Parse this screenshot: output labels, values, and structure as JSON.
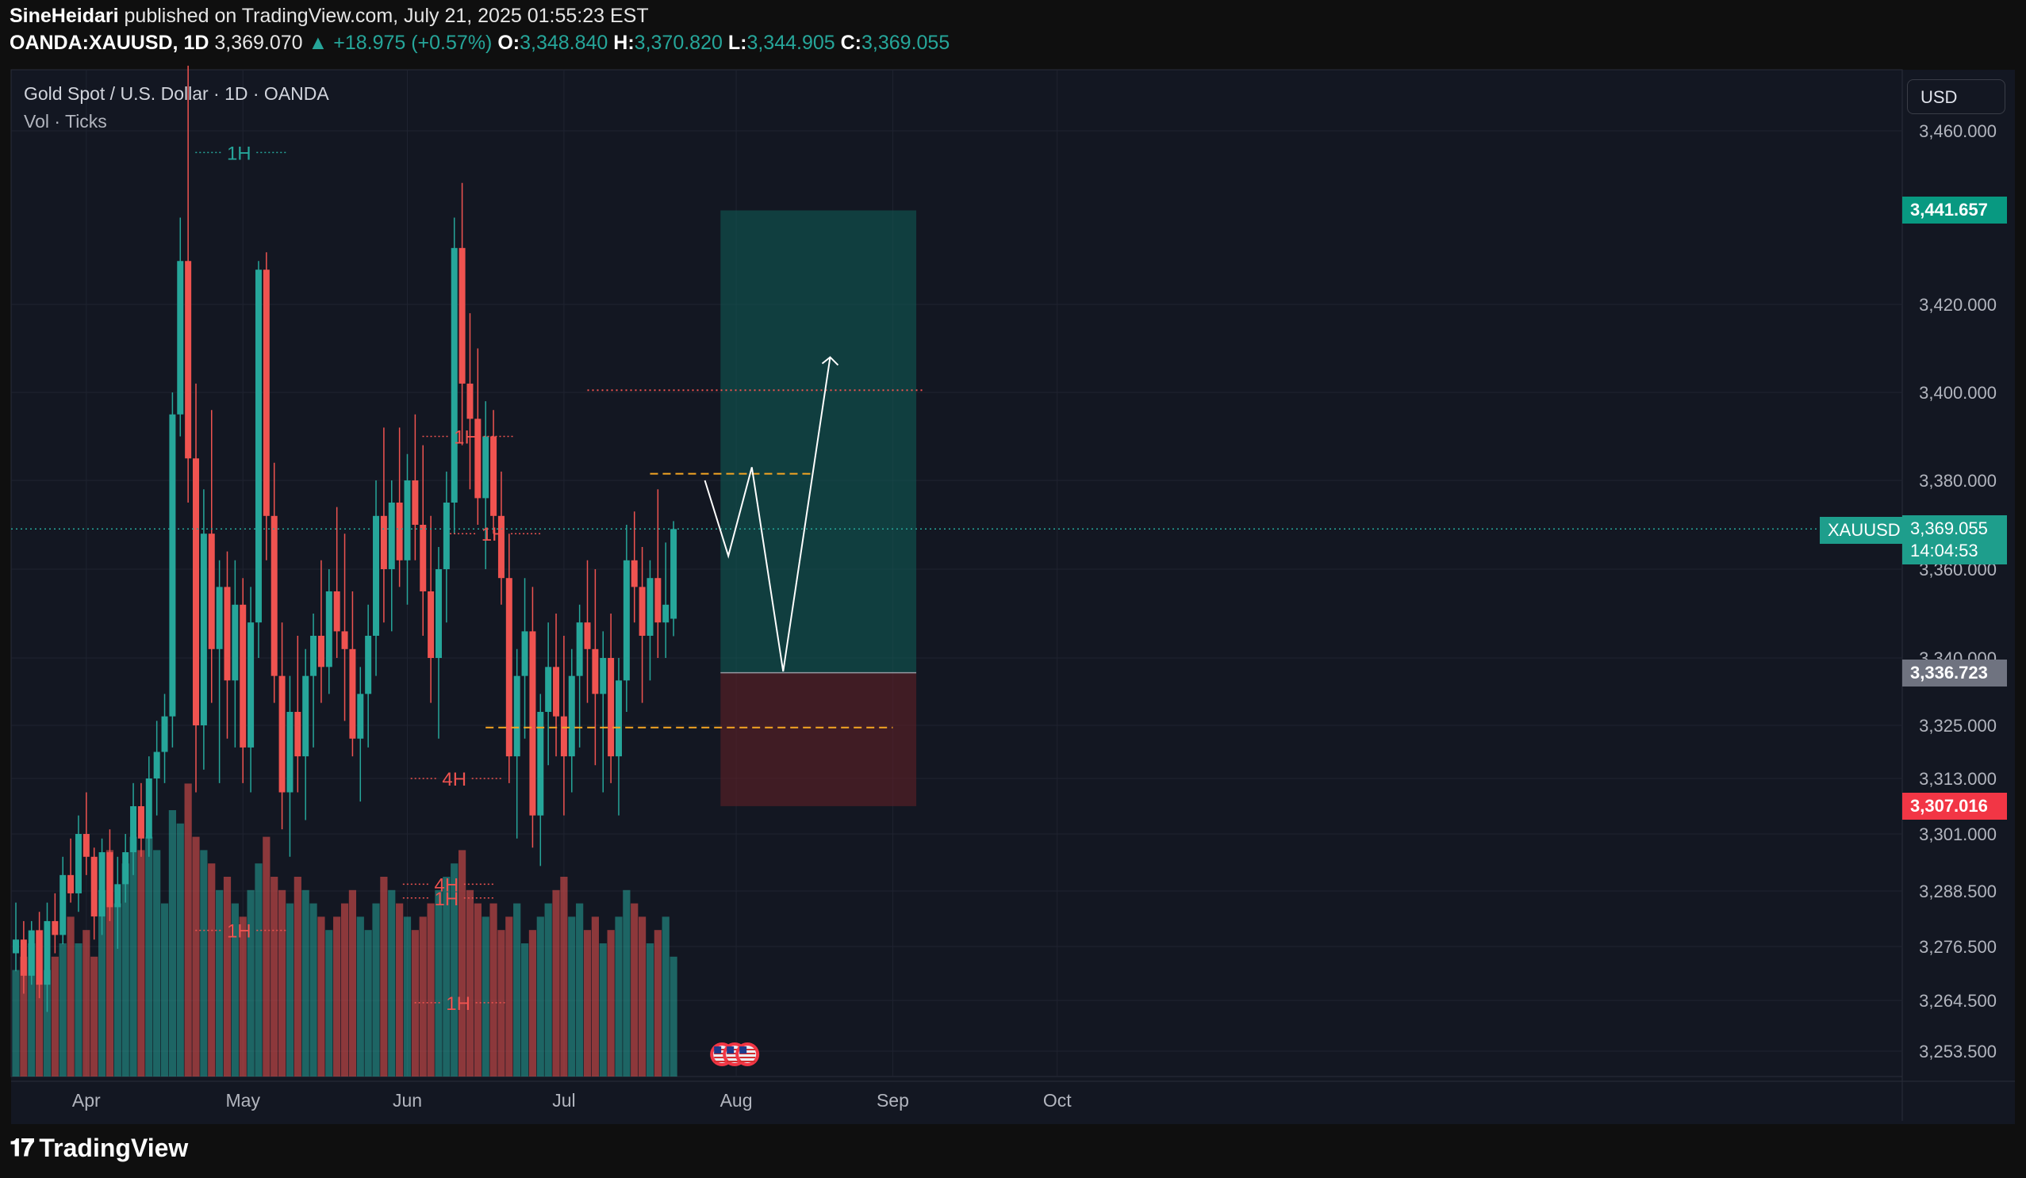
{
  "header": {
    "author": "SineHeidari",
    "published_text": "published on TradingView.com, July 21, 2025 01:55:23 EST",
    "symbol": "OANDA:XAUUSD, 1D",
    "last": "3,369.070",
    "change": "▲ +18.975 (+0.57%)",
    "o_label": "O:",
    "o_value": "3,348.840",
    "h_label": "H:",
    "h_value": "3,370.820",
    "l_label": "L:",
    "l_value": "3,344.905",
    "c_label": "C:",
    "c_value": "3,369.055"
  },
  "legend": {
    "title": "Gold Spot / U.S. Dollar · 1D · OANDA",
    "indicator": "Vol · Ticks"
  },
  "price_axis": {
    "currency_button": "USD",
    "tp_label": "3,441.657",
    "sl_label": "3,307.016",
    "entry_label": "3,336.723",
    "symbol_tag": "XAUUSD",
    "current_price": "3,369.055",
    "countdown": "14:04:53"
  },
  "footer": {
    "brand": "TradingView",
    "logo_icon": "tradingview-logo-icon"
  },
  "colors": {
    "up": "#26a69a",
    "down": "#ef5350",
    "background": "#131722",
    "target_zone": "#0f5f58",
    "stop_zone": "#5f1f27",
    "annotation": "#ef5350",
    "level": "#f5a623"
  },
  "chart_data": {
    "type": "candlestick",
    "symbol": "XAUUSD",
    "timeframe": "1D",
    "ylim": [
      3245,
      3470
    ],
    "y_ticks": [
      {
        "value": 3460,
        "label": "3,460.000"
      },
      {
        "value": 3420,
        "label": "3,420.000"
      },
      {
        "value": 3400,
        "label": "3,400.000"
      },
      {
        "value": 3380,
        "label": "3,380.000"
      },
      {
        "value": 3360,
        "label": "3,360.000"
      },
      {
        "value": 3340,
        "label": "3,340.000"
      },
      {
        "value": 3325,
        "label": "3,325.000"
      },
      {
        "value": 3313,
        "label": "3,313.000"
      },
      {
        "value": 3301,
        "label": "3,301.000"
      },
      {
        "value": 3288.5,
        "label": "3,288.500"
      },
      {
        "value": 3276.5,
        "label": "3,276.500"
      },
      {
        "value": 3264.5,
        "label": "3,264.500"
      },
      {
        "value": 3253.5,
        "label": "3,253.500"
      }
    ],
    "x_ticks": [
      {
        "index": 9,
        "label": "Apr"
      },
      {
        "index": 29,
        "label": "May"
      },
      {
        "index": 50,
        "label": "Jun"
      },
      {
        "index": 70,
        "label": "Jul"
      },
      {
        "index": 92,
        "label": "Aug"
      },
      {
        "index": 112,
        "label": "Sep"
      },
      {
        "index": 133,
        "label": "Oct"
      }
    ],
    "candles": [
      [
        3275,
        3286,
        3271,
        3278,
        8
      ],
      [
        3278,
        3282,
        3266,
        3270,
        9
      ],
      [
        3270,
        3282,
        3268,
        3280,
        10
      ],
      [
        3280,
        3284,
        3265,
        3268,
        11
      ],
      [
        3268,
        3286,
        3262,
        3282,
        8
      ],
      [
        3282,
        3288,
        3275,
        3279,
        9
      ],
      [
        3279,
        3296,
        3277,
        3292,
        10
      ],
      [
        3292,
        3300,
        3286,
        3288,
        12
      ],
      [
        3288,
        3305,
        3284,
        3301,
        10
      ],
      [
        3301,
        3310,
        3292,
        3296,
        11
      ],
      [
        3296,
        3298,
        3278,
        3283,
        9
      ],
      [
        3283,
        3300,
        3279,
        3297,
        14
      ],
      [
        3297,
        3302,
        3282,
        3285,
        17
      ],
      [
        3285,
        3296,
        3276,
        3290,
        13
      ],
      [
        3290,
        3301,
        3286,
        3297,
        16
      ],
      [
        3297,
        3312,
        3292,
        3307,
        18
      ],
      [
        3307,
        3312,
        3296,
        3300,
        17
      ],
      [
        3300,
        3318,
        3296,
        3313,
        18
      ],
      [
        3313,
        3326,
        3305,
        3319,
        17
      ],
      [
        3319,
        3332,
        3312,
        3327,
        13
      ],
      [
        3327,
        3400,
        3320,
        3395,
        20
      ],
      [
        3395,
        3440,
        3390,
        3430,
        19
      ],
      [
        3430,
        3475,
        3375,
        3385,
        22
      ],
      [
        3385,
        3402,
        3310,
        3325,
        18
      ],
      [
        3325,
        3378,
        3315,
        3368,
        17
      ],
      [
        3368,
        3396,
        3330,
        3342,
        16
      ],
      [
        3342,
        3362,
        3312,
        3356,
        14
      ],
      [
        3356,
        3364,
        3322,
        3335,
        15
      ],
      [
        3335,
        3362,
        3320,
        3352,
        13
      ],
      [
        3352,
        3358,
        3312,
        3320,
        12
      ],
      [
        3320,
        3356,
        3310,
        3348,
        14
      ],
      [
        3348,
        3430,
        3340,
        3428,
        16
      ],
      [
        3428,
        3432,
        3362,
        3372,
        18
      ],
      [
        3372,
        3384,
        3330,
        3336,
        15
      ],
      [
        3336,
        3348,
        3302,
        3310,
        14
      ],
      [
        3310,
        3336,
        3296,
        3328,
        13
      ],
      [
        3328,
        3345,
        3310,
        3318,
        15
      ],
      [
        3318,
        3342,
        3304,
        3336,
        14
      ],
      [
        3336,
        3350,
        3320,
        3345,
        13
      ],
      [
        3345,
        3362,
        3330,
        3338,
        12
      ],
      [
        3338,
        3360,
        3332,
        3355,
        11
      ],
      [
        3355,
        3374,
        3340,
        3346,
        12
      ],
      [
        3346,
        3368,
        3326,
        3342,
        13
      ],
      [
        3342,
        3355,
        3318,
        3322,
        14
      ],
      [
        3322,
        3338,
        3308,
        3332,
        12
      ],
      [
        3332,
        3352,
        3320,
        3345,
        11
      ],
      [
        3345,
        3380,
        3336,
        3372,
        13
      ],
      [
        3372,
        3392,
        3348,
        3360,
        15
      ],
      [
        3360,
        3380,
        3346,
        3375,
        14
      ],
      [
        3375,
        3392,
        3356,
        3362,
        13
      ],
      [
        3362,
        3386,
        3352,
        3380,
        12
      ],
      [
        3380,
        3395,
        3362,
        3370,
        11
      ],
      [
        3370,
        3388,
        3345,
        3355,
        12
      ],
      [
        3355,
        3372,
        3330,
        3340,
        13
      ],
      [
        3340,
        3365,
        3322,
        3360,
        14
      ],
      [
        3360,
        3382,
        3348,
        3375,
        15
      ],
      [
        3375,
        3440,
        3368,
        3433,
        16
      ],
      [
        3433,
        3448,
        3388,
        3402,
        17
      ],
      [
        3402,
        3418,
        3378,
        3394,
        14
      ],
      [
        3394,
        3410,
        3370,
        3376,
        13
      ],
      [
        3376,
        3398,
        3360,
        3390,
        12
      ],
      [
        3390,
        3396,
        3368,
        3372,
        13
      ],
      [
        3372,
        3382,
        3352,
        3358,
        11
      ],
      [
        3358,
        3368,
        3312,
        3318,
        12
      ],
      [
        3318,
        3342,
        3300,
        3336,
        13
      ],
      [
        3336,
        3358,
        3322,
        3346,
        10
      ],
      [
        3346,
        3356,
        3298,
        3305,
        11
      ],
      [
        3305,
        3332,
        3294,
        3328,
        12
      ],
      [
        3328,
        3348,
        3316,
        3338,
        13
      ],
      [
        3338,
        3350,
        3318,
        3327,
        14
      ],
      [
        3327,
        3345,
        3305,
        3318,
        15
      ],
      [
        3318,
        3342,
        3310,
        3336,
        12
      ],
      [
        3336,
        3352,
        3320,
        3348,
        13
      ],
      [
        3348,
        3362,
        3330,
        3342,
        11
      ],
      [
        3342,
        3360,
        3316,
        3332,
        12
      ],
      [
        3332,
        3346,
        3310,
        3340,
        10
      ],
      [
        3340,
        3350,
        3312,
        3318,
        11
      ],
      [
        3318,
        3340,
        3305,
        3335,
        12
      ],
      [
        3335,
        3370,
        3328,
        3362,
        14
      ],
      [
        3362,
        3373,
        3348,
        3356,
        13
      ],
      [
        3356,
        3365,
        3330,
        3345,
        12
      ],
      [
        3345,
        3362,
        3335,
        3358,
        10
      ],
      [
        3358,
        3378,
        3340,
        3348,
        11
      ],
      [
        3348,
        3366,
        3340,
        3352,
        12
      ],
      [
        3348.84,
        3370.82,
        3344.905,
        3369.055,
        9
      ]
    ],
    "position": {
      "type": "long",
      "entry": 3336.723,
      "take_profit": 3441.657,
      "stop_loss": 3307.016,
      "start_index": 90,
      "end_index": 115
    },
    "horizontal_lines": [
      {
        "price": 3400.5,
        "style": "dotted",
        "color": "#ef5350",
        "from_index": 73,
        "to_index": 116
      },
      {
        "price": 3381.5,
        "style": "dashed",
        "color": "#f5a623",
        "from_index": 81,
        "to_index": 102
      },
      {
        "price": 3324.5,
        "style": "dashed",
        "color": "#f5a623",
        "from_index": 60,
        "to_index": 112
      }
    ],
    "projection_path": [
      {
        "index": 88,
        "price": 3380
      },
      {
        "index": 91,
        "price": 3363
      },
      {
        "index": 94,
        "price": 3383
      },
      {
        "index": 98,
        "price": 3337
      },
      {
        "index": 104,
        "price": 3408
      }
    ],
    "annotations": [
      {
        "text": "1H",
        "index": 28.5,
        "price": 3455,
        "color": "#26a69a"
      },
      {
        "text": "1H",
        "index": 57.5,
        "price": 3390,
        "color": "#ef5350"
      },
      {
        "text": "1H",
        "index": 61,
        "price": 3368,
        "color": "#ef5350"
      },
      {
        "text": "4H",
        "index": 56,
        "price": 3313,
        "color": "#ef5350"
      },
      {
        "text": "4H",
        "index": 55,
        "price": 3290,
        "color": "#ef5350"
      },
      {
        "text": "1H",
        "index": 55,
        "price": 3287,
        "color": "#ef5350"
      },
      {
        "text": "1H",
        "index": 28.5,
        "price": 3280,
        "color": "#ef5350"
      },
      {
        "text": "1H",
        "index": 56.5,
        "price": 3264,
        "color": "#ef5350"
      }
    ],
    "events_index": 91
  }
}
